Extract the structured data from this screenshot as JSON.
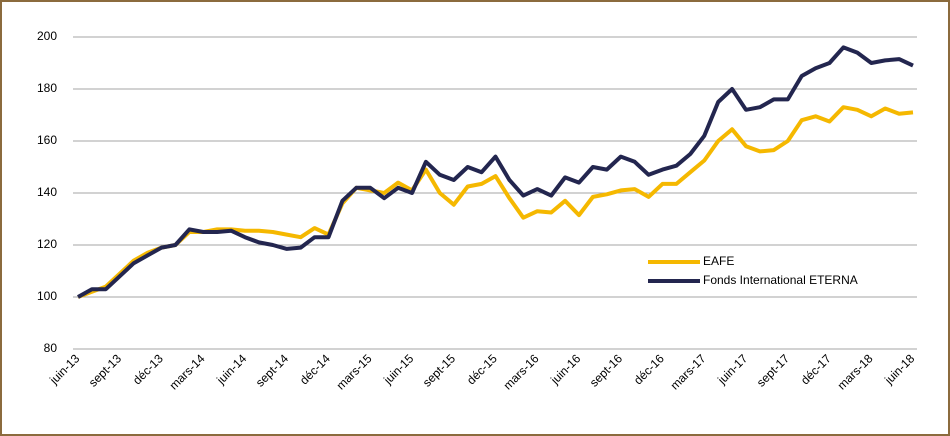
{
  "chart_data": {
    "type": "line",
    "categories": [
      "juin-13",
      null,
      null,
      "sept-13",
      null,
      null,
      "déc-13",
      null,
      null,
      "mars-14",
      null,
      null,
      "juin-14",
      null,
      null,
      "sept-14",
      null,
      null,
      "déc-14",
      null,
      null,
      "mars-15",
      null,
      null,
      "juin-15",
      null,
      null,
      "sept-15",
      null,
      null,
      "déc-15",
      null,
      null,
      "mars-16",
      null,
      null,
      "juin-16",
      null,
      null,
      "sept-16",
      null,
      null,
      "déc-16",
      null,
      null,
      "mars-17",
      null,
      null,
      "juin-17",
      null,
      null,
      "sept-17",
      null,
      null,
      "déc-17",
      null,
      null,
      "mars-18",
      null,
      null,
      "juin-18"
    ],
    "series": [
      {
        "name": "EAFE",
        "color": "#f5b800",
        "values": [
          100,
          102,
          104,
          109,
          114,
          117,
          119,
          120,
          125,
          125,
          126,
          126,
          125.5,
          125.5,
          125,
          124,
          123,
          126.5,
          124,
          136,
          142,
          141,
          140,
          144,
          141,
          149,
          140,
          135.5,
          142.5,
          143.5,
          146.5,
          138,
          130.5,
          133,
          132.5,
          137,
          131.5,
          138.5,
          139.5,
          141,
          141.5,
          138.5,
          143.5,
          143.5,
          148,
          152.5,
          160,
          164.5,
          158,
          156,
          156.5,
          160,
          168,
          169.5,
          167.5,
          173,
          172,
          169.5,
          172.5,
          170.5,
          171
        ]
      },
      {
        "name": "Fonds International ETERNA",
        "color": "#23264f",
        "values": [
          100,
          103,
          103,
          108,
          113,
          116,
          119,
          120,
          126,
          125,
          125,
          125.5,
          123,
          121,
          120,
          118.5,
          119,
          123,
          123,
          137,
          142,
          142,
          138,
          142,
          140,
          152,
          147,
          145,
          150,
          148,
          154,
          145,
          139,
          141.5,
          139,
          146,
          144,
          150,
          149,
          154,
          152,
          147,
          149,
          150.5,
          155,
          162,
          175,
          180,
          172,
          173,
          176,
          176,
          185,
          188,
          190,
          196,
          194,
          190,
          191,
          191.5,
          189
        ]
      }
    ],
    "ylim": [
      80,
      200
    ],
    "yticks": [
      80,
      100,
      120,
      140,
      160,
      180,
      200
    ],
    "grid": true
  }
}
